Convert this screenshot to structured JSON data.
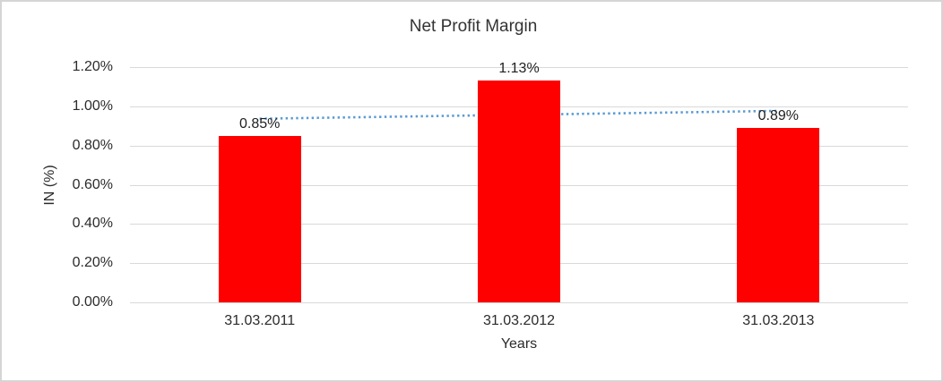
{
  "chart_data": {
    "type": "bar",
    "title": "Net Profit Margin",
    "xlabel": "Years",
    "ylabel": "IN (%)",
    "categories": [
      "31.03.2011",
      "31.03.2012",
      "31.03.2013"
    ],
    "values": [
      0.85,
      1.13,
      0.89
    ],
    "data_labels": [
      "0.85%",
      "1.13%",
      "0.89%"
    ],
    "y_ticks": [
      "0.00%",
      "0.20%",
      "0.40%",
      "0.60%",
      "0.80%",
      "1.00%",
      "1.20%"
    ],
    "y_tick_values": [
      0.0,
      0.2,
      0.4,
      0.6,
      0.8,
      1.0,
      1.2
    ],
    "ylim": [
      0,
      1.2
    ],
    "grid": true,
    "legend": "none",
    "bar_color": "#ff0000",
    "gridline_color": "#d9d9d9",
    "trendline": {
      "type": "linear",
      "style": "dotted",
      "color": "#5b9bd5",
      "start_value": 0.9367,
      "end_value": 0.9767
    }
  }
}
